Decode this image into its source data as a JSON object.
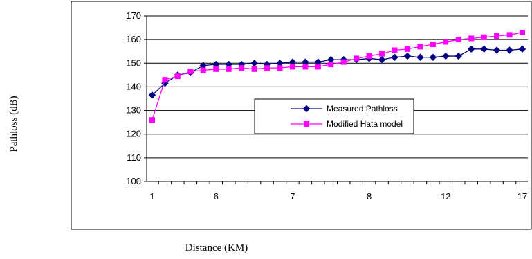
{
  "chart_data": {
    "type": "line",
    "title": "",
    "xlabel": "Distance (KM)",
    "ylabel": "Pathloss (dB)",
    "ylim": [
      100,
      170
    ],
    "yticks": [
      100,
      110,
      120,
      130,
      140,
      150,
      160,
      170
    ],
    "x_tick_labels": [
      {
        "index": 0,
        "label": "1"
      },
      {
        "index": 5,
        "label": "6"
      },
      {
        "index": 11,
        "label": "7"
      },
      {
        "index": 17,
        "label": "8"
      },
      {
        "index": 23,
        "label": "12"
      },
      {
        "index": 29,
        "label": "17"
      }
    ],
    "grid": "y-major",
    "legend_position": "center",
    "series": [
      {
        "name": "Measured Pathloss",
        "color": "#000080",
        "marker": "diamond",
        "values": [
          136.5,
          141.5,
          145,
          146,
          149,
          149.5,
          149.5,
          149.5,
          150,
          149.5,
          150,
          150.5,
          150.5,
          150.5,
          151.5,
          151.5,
          151.5,
          152,
          151.5,
          152.5,
          153,
          152.5,
          152.5,
          153,
          153,
          156,
          156,
          155.5,
          155.5,
          156
        ]
      },
      {
        "name": "Modified Hata model",
        "color": "#ff00ff",
        "marker": "square",
        "values": [
          126,
          143,
          144.5,
          146.5,
          147,
          147.5,
          147.5,
          148,
          147.5,
          148,
          148,
          148.5,
          148.5,
          148.5,
          149.5,
          150.5,
          152,
          153,
          154,
          155.5,
          156,
          157,
          158,
          159,
          160,
          160.5,
          161,
          161.5,
          162,
          163
        ]
      }
    ]
  }
}
